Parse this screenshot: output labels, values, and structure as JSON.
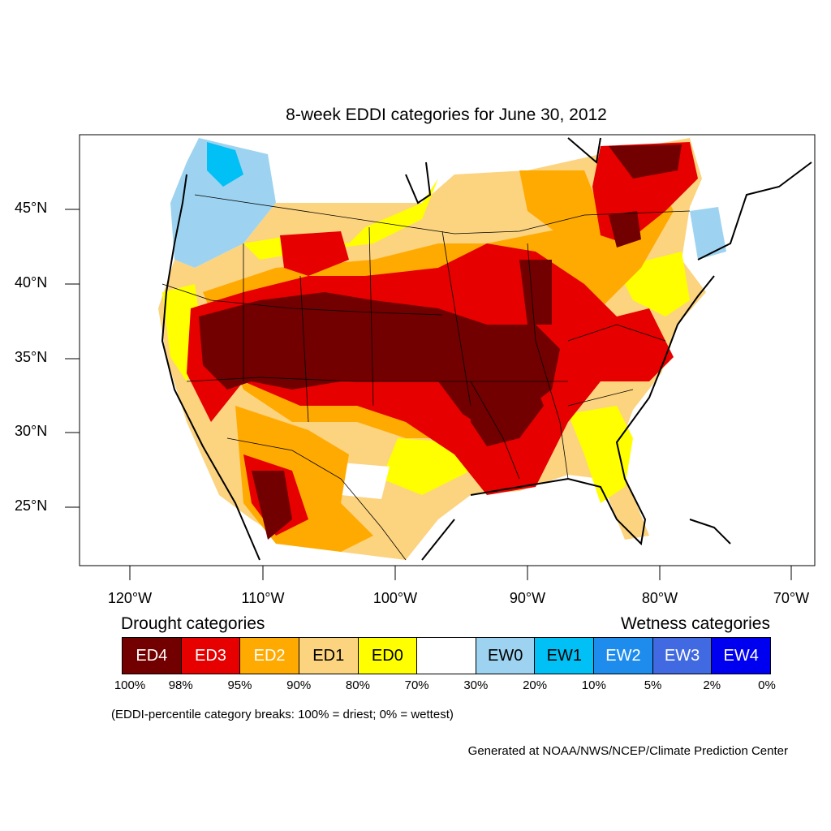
{
  "title": "8-week EDDI categories for June 30, 2012",
  "lat_labels": [
    "45°N",
    "40°N",
    "35°N",
    "30°N",
    "25°N"
  ],
  "lon_labels": [
    "120°W",
    "110°W",
    "100°W",
    "90°W",
    "80°W",
    "70°W"
  ],
  "legend": {
    "drought_heading": "Drought categories",
    "wetness_heading": "Wetness categories",
    "categories": [
      {
        "label": "ED4",
        "color": "#730000",
        "text_color": "#ffffff"
      },
      {
        "label": "ED3",
        "color": "#e60000",
        "text_color": "#ffffff"
      },
      {
        "label": "ED2",
        "color": "#ffaa00",
        "text_color": "#ffffff"
      },
      {
        "label": "ED1",
        "color": "#fcd37f",
        "text_color": "#000000"
      },
      {
        "label": "ED0",
        "color": "#ffff00",
        "text_color": "#000000"
      },
      {
        "label": "",
        "color": "#ffffff",
        "text_color": "#000000"
      },
      {
        "label": "EW0",
        "color": "#9dd3f0",
        "text_color": "#000000"
      },
      {
        "label": "EW1",
        "color": "#00c0f5",
        "text_color": "#000000"
      },
      {
        "label": "EW2",
        "color": "#1e8ced",
        "text_color": "#ffffff"
      },
      {
        "label": "EW3",
        "color": "#4169e1",
        "text_color": "#ffffff"
      },
      {
        "label": "EW4",
        "color": "#0000f0",
        "text_color": "#ffffff"
      }
    ],
    "percentiles": [
      "100%",
      "98%",
      "95%",
      "90%",
      "80%",
      "70%",
      "30%",
      "20%",
      "10%",
      "5%",
      "2%",
      "0%"
    ]
  },
  "note": "(EDDI-percentile category breaks: 100% = driest; 0% = wettest)",
  "credit": "Generated at NOAA/NWS/NCEP/Climate Prediction Center"
}
